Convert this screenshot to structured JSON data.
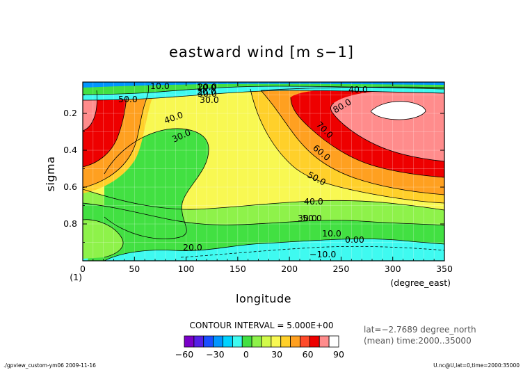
{
  "chart_data": {
    "type": "contour",
    "title": "eastward wind [m s−1]",
    "xlabel": "longitude",
    "xunit": "(degree_east)",
    "ylabel": "sigma",
    "xlim": [
      0,
      350
    ],
    "ylim": [
      1.0,
      0.03
    ],
    "x_ticks": [
      "0",
      "50",
      "100",
      "150",
      "200",
      "250",
      "300",
      "350"
    ],
    "y_ticks": [
      "0.2",
      "0.4",
      "0.6",
      "0.8"
    ],
    "y_extra_label": "(1)",
    "grid": true,
    "contour_interval_text": "CONTOUR INTERVAL = 5.000E+00",
    "contour_labels": [
      "10.0",
      "10.0",
      "20.0",
      "30.0",
      "40.0",
      "50.0",
      "30.0",
      "40.0",
      "50.0",
      "60.0",
      "70.0",
      "80.0",
      "20.0",
      "30.0",
      "40.0",
      "50.0",
      "30.0",
      "10.0",
      "0.00",
      "−10.0",
      "20.0"
    ],
    "colorbar": {
      "levels": [
        -60,
        -30,
        0,
        30,
        60,
        90
      ],
      "tick_labels": [
        "−60",
        "−30",
        "0",
        "30",
        "60",
        "90"
      ],
      "colors": [
        "#7a00c8",
        "#5520e6",
        "#1a4fff",
        "#0096ff",
        "#00d2ff",
        "#3ffaf0",
        "#42e042",
        "#8ef24a",
        "#d2fa4a",
        "#f8f852",
        "#ffd02a",
        "#ffa020",
        "#ff4a2a",
        "#ee0000",
        "#ff8c8c",
        "#ffffff"
      ]
    },
    "approx_maxima": [
      {
        "region": "longitude 280-340, sigma 0.1-0.25",
        "value": 90,
        "unit": "m s-1"
      },
      {
        "region": "longitude 0-20, sigma 0.1-0.35",
        "value": 65,
        "unit": "m s-1"
      }
    ],
    "approx_minima": [
      {
        "region": "longitude 150-350, sigma 0.9-1.0",
        "value": -10,
        "unit": "m s-1"
      }
    ]
  },
  "info": {
    "line1": "lat=−2.7689 degree_north",
    "line2": "(mean) time:2000..35000"
  },
  "footer": {
    "left": "./gpview_custom-ym06  2009-11-16",
    "right": "U.nc@U,lat=0,time=2000:35000"
  }
}
